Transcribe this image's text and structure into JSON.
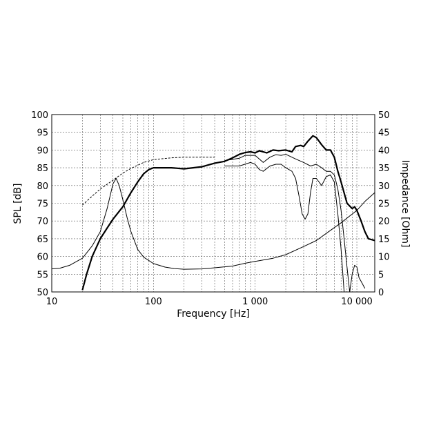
{
  "chart_data": {
    "type": "line",
    "xlabel": "Frequency [Hz]",
    "ylabel_left": "SPL [dB]",
    "ylabel_right": "Impedance [Ohm]",
    "x_scale": "log",
    "xlim": [
      10,
      15000
    ],
    "ylim_left": [
      50,
      100
    ],
    "ylim_right": [
      0,
      50
    ],
    "grid": true,
    "x_ticks": [
      {
        "value": 10,
        "label": "10"
      },
      {
        "value": 100,
        "label": "100"
      },
      {
        "value": 1000,
        "label": "1 000"
      },
      {
        "value": 10000,
        "label": "10 000"
      }
    ],
    "y_ticks_left": [
      "50",
      "55",
      "60",
      "65",
      "70",
      "75",
      "80",
      "85",
      "90",
      "95",
      "100"
    ],
    "y_ticks_right": [
      "0",
      "5",
      "10",
      "15",
      "20",
      "25",
      "30",
      "35",
      "40",
      "45",
      "50"
    ],
    "series": [
      {
        "id": "spl-on-axis",
        "axis": "left",
        "style": "thick",
        "points": [
          [
            20,
            50.5
          ],
          [
            22,
            55
          ],
          [
            25,
            60
          ],
          [
            30,
            65
          ],
          [
            35,
            68
          ],
          [
            40,
            70.5
          ],
          [
            50,
            74
          ],
          [
            60,
            78
          ],
          [
            70,
            81
          ],
          [
            80,
            83.3
          ],
          [
            90,
            84.5
          ],
          [
            100,
            85
          ],
          [
            150,
            85
          ],
          [
            200,
            84.7
          ],
          [
            300,
            85.3
          ],
          [
            400,
            86.3
          ],
          [
            500,
            86.8
          ],
          [
            600,
            87.8
          ],
          [
            700,
            88.8
          ],
          [
            800,
            89.3
          ],
          [
            900,
            89.5
          ],
          [
            1000,
            89.2
          ],
          [
            1100,
            89.8
          ],
          [
            1300,
            89.2
          ],
          [
            1500,
            90
          ],
          [
            1700,
            89.8
          ],
          [
            2000,
            90
          ],
          [
            2300,
            89.5
          ],
          [
            2500,
            91
          ],
          [
            2800,
            91.3
          ],
          [
            3000,
            91
          ],
          [
            3300,
            92.5
          ],
          [
            3700,
            94
          ],
          [
            4000,
            93.5
          ],
          [
            4500,
            91.5
          ],
          [
            5000,
            90
          ],
          [
            5500,
            90
          ],
          [
            6000,
            88
          ],
          [
            6500,
            84
          ],
          [
            7000,
            81
          ],
          [
            8000,
            75
          ],
          [
            9000,
            73.5
          ],
          [
            9500,
            74
          ],
          [
            10000,
            73
          ],
          [
            11000,
            70
          ],
          [
            12000,
            67
          ],
          [
            13000,
            65
          ],
          [
            15000,
            64.5
          ]
        ]
      },
      {
        "id": "spl-30deg",
        "axis": "left",
        "style": "thin",
        "points": [
          [
            500,
            87
          ],
          [
            700,
            87.7
          ],
          [
            800,
            88.5
          ],
          [
            900,
            88.5
          ],
          [
            1000,
            88.5
          ],
          [
            1200,
            86.5
          ],
          [
            1400,
            88
          ],
          [
            1600,
            88.7
          ],
          [
            1800,
            88.5
          ],
          [
            2000,
            88.8
          ],
          [
            2500,
            87.5
          ],
          [
            3000,
            86.5
          ],
          [
            3500,
            85.5
          ],
          [
            4000,
            86
          ],
          [
            4500,
            85
          ],
          [
            5000,
            84
          ],
          [
            5500,
            84
          ],
          [
            6000,
            83
          ],
          [
            6500,
            79
          ],
          [
            7000,
            73
          ],
          [
            7500,
            65
          ],
          [
            8000,
            57
          ],
          [
            8500,
            50
          ],
          [
            9000,
            55
          ],
          [
            9500,
            57.5
          ],
          [
            10000,
            57
          ],
          [
            10500,
            54
          ],
          [
            11000,
            53
          ],
          [
            12000,
            51
          ]
        ]
      },
      {
        "id": "spl-60deg",
        "axis": "left",
        "style": "thin",
        "points": [
          [
            500,
            85.5
          ],
          [
            700,
            85.5
          ],
          [
            900,
            86.5
          ],
          [
            1000,
            86
          ],
          [
            1100,
            84.5
          ],
          [
            1200,
            84
          ],
          [
            1400,
            85.5
          ],
          [
            1600,
            86
          ],
          [
            1800,
            86
          ],
          [
            2000,
            85
          ],
          [
            2300,
            84
          ],
          [
            2500,
            82
          ],
          [
            2700,
            77
          ],
          [
            2900,
            72
          ],
          [
            3100,
            70.5
          ],
          [
            3300,
            72
          ],
          [
            3500,
            78
          ],
          [
            3700,
            82
          ],
          [
            4000,
            82
          ],
          [
            4500,
            80
          ],
          [
            5000,
            82.5
          ],
          [
            5500,
            83
          ],
          [
            6000,
            81
          ],
          [
            6500,
            72
          ],
          [
            7000,
            62
          ],
          [
            7500,
            50
          ]
        ]
      },
      {
        "id": "spl-free-air",
        "axis": "left",
        "style": "dashed",
        "points": [
          [
            20,
            74.5
          ],
          [
            25,
            77
          ],
          [
            30,
            79
          ],
          [
            40,
            81.5
          ],
          [
            50,
            83.5
          ],
          [
            60,
            84.8
          ],
          [
            80,
            86.5
          ],
          [
            100,
            87.3
          ],
          [
            150,
            87.8
          ],
          [
            200,
            88
          ],
          [
            300,
            88
          ],
          [
            400,
            88
          ]
        ]
      },
      {
        "id": "impedance",
        "axis": "right",
        "style": "thin",
        "points": [
          [
            10,
            6.5
          ],
          [
            12,
            6.7
          ],
          [
            15,
            7.5
          ],
          [
            20,
            9.5
          ],
          [
            25,
            13
          ],
          [
            30,
            17
          ],
          [
            35,
            23.5
          ],
          [
            40,
            30.5
          ],
          [
            43,
            32
          ],
          [
            46,
            30
          ],
          [
            50,
            26
          ],
          [
            55,
            21
          ],
          [
            60,
            17
          ],
          [
            70,
            12
          ],
          [
            80,
            9.8
          ],
          [
            100,
            8
          ],
          [
            130,
            7
          ],
          [
            160,
            6.6
          ],
          [
            200,
            6.4
          ],
          [
            300,
            6.5
          ],
          [
            400,
            6.8
          ],
          [
            600,
            7.3
          ],
          [
            800,
            8.1
          ],
          [
            1000,
            8.6
          ],
          [
            1500,
            9.5
          ],
          [
            2000,
            10.5
          ],
          [
            3000,
            12.8
          ],
          [
            4000,
            14.5
          ],
          [
            5000,
            16.5
          ],
          [
            7000,
            19.5
          ],
          [
            10000,
            23
          ],
          [
            12000,
            25.5
          ],
          [
            15000,
            28
          ]
        ]
      }
    ]
  }
}
